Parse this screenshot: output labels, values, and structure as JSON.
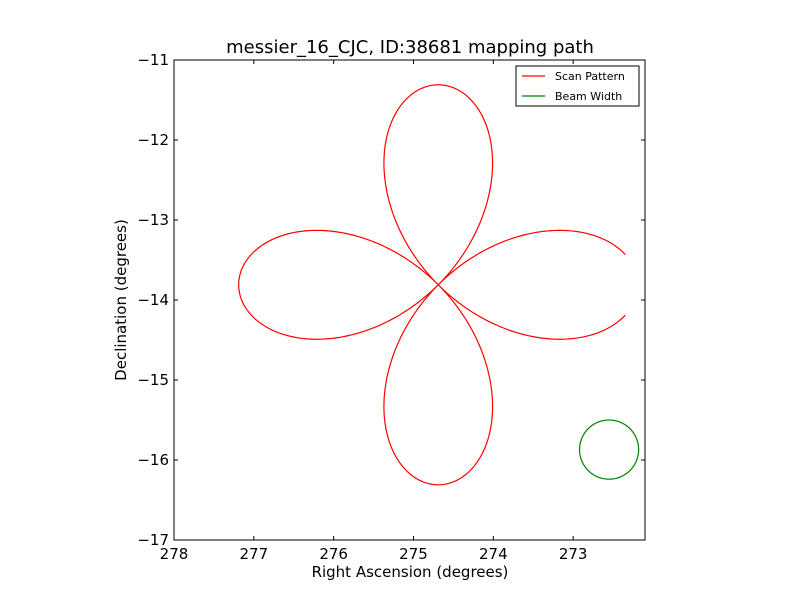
{
  "chart_data": {
    "type": "line",
    "title": "messier_16_CJC, ID:38681 mapping path",
    "xlabel": "Right Ascension (degrees)",
    "ylabel": "Declination (degrees)",
    "xlim": [
      278,
      272.1
    ],
    "ylim": [
      -17,
      -11
    ],
    "x_inverted": true,
    "xticks": [
      278,
      277,
      276,
      275,
      274,
      273
    ],
    "xtick_labels": [
      "278",
      "277",
      "276",
      "275",
      "274",
      "273"
    ],
    "yticks": [
      -11,
      -12,
      -13,
      -14,
      -15,
      -16,
      -17
    ],
    "ytick_labels": [
      "−11",
      "−12",
      "−13",
      "−14",
      "−15",
      "−16",
      "−17"
    ],
    "grid": false,
    "legend_position": "top-right",
    "series": [
      {
        "name": "Scan Pattern",
        "color": "#ff0000",
        "shape": "four-petal rose",
        "center": [
          274.69,
          -13.81
        ],
        "radius_deg": 2.5
      },
      {
        "name": "Beam Width",
        "color": "#008000",
        "shape": "circle",
        "center": [
          272.55,
          -15.87
        ],
        "radius_deg": 0.37
      }
    ],
    "legend": [
      "Scan Pattern",
      "Beam Width"
    ]
  }
}
